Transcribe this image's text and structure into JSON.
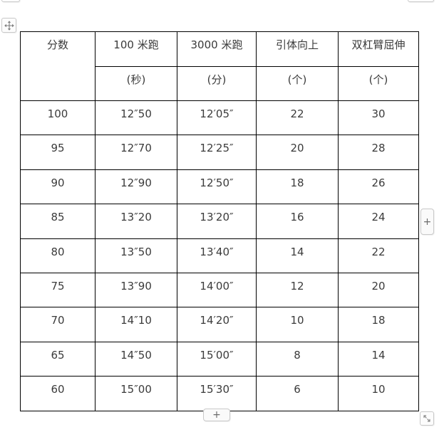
{
  "table": {
    "columns": [
      {
        "label": "分数",
        "unit": ""
      },
      {
        "label": "100 米跑",
        "unit": "(秒)"
      },
      {
        "label": "3000 米跑",
        "unit": "(分)"
      },
      {
        "label": "引体向上",
        "unit": "(个)"
      },
      {
        "label": "双杠臂屈伸",
        "unit": "(个)"
      }
    ],
    "rows": [
      [
        "100",
        "12″50",
        "12′05″",
        "22",
        "30"
      ],
      [
        "95",
        "12″70",
        "12′25″",
        "20",
        "28"
      ],
      [
        "90",
        "12″90",
        "12′50″",
        "18",
        "26"
      ],
      [
        "85",
        "13″20",
        "13′20″",
        "16",
        "24"
      ],
      [
        "80",
        "13″50",
        "13′40″",
        "14",
        "22"
      ],
      [
        "75",
        "13″90",
        "14′00″",
        "12",
        "20"
      ],
      [
        "70",
        "14″10",
        "14′20″",
        "10",
        "18"
      ],
      [
        "65",
        "14″50",
        "15′00″",
        "8",
        "14"
      ],
      [
        "60",
        "15″00",
        "15′30″",
        "6",
        "10"
      ]
    ]
  },
  "controls": {
    "move_handle_icon": "move-arrows",
    "insert_column_label": "+",
    "insert_row_label": "+",
    "resize_handle_icon": "resize-diagonal"
  },
  "colors": {
    "table_border": "#000000",
    "cell_text": "#3b3b3b",
    "handle_border": "#c9c9c9",
    "handle_background": "#fafafa",
    "handle_icon": "#7c7c7c"
  }
}
